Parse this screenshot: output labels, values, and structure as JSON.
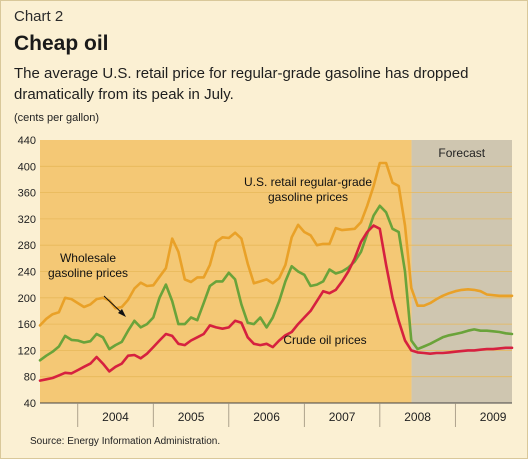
{
  "header": {
    "chart_number": "Chart 2",
    "title": "Cheap oil",
    "subtitle": "The average U.S. retail price for regular-grade gasoline has dropped dramatically from its peak in July."
  },
  "unit_label": "(cents per gallon)",
  "source": "Source: Energy Information Administration.",
  "colors": {
    "plot_actual": "#f4c875",
    "plot_forecast": "#cfc6b0",
    "retail": "#e9a128",
    "wholesale": "#6aa33a",
    "crude": "#d6213f",
    "grid": "#e7b85a"
  },
  "chart_data": {
    "type": "line",
    "ylim": [
      40,
      440
    ],
    "yticks": [
      40,
      80,
      120,
      160,
      200,
      240,
      280,
      320,
      360,
      400,
      440
    ],
    "xlim": [
      2003.5,
      2009.75
    ],
    "year_labels": [
      "2004",
      "2005",
      "2006",
      "2007",
      "2008",
      "2009"
    ],
    "forecast_start": 2008.42,
    "forecast_label": "Forecast",
    "series": [
      {
        "key": "retail",
        "name": "U.S. retail regular-grade gasoline prices",
        "name_lines": [
          "U.S. retail regular-grade",
          "gasoline prices"
        ],
        "x": [
          2003.5,
          2003.583,
          2003.667,
          2003.75,
          2003.833,
          2003.917,
          2004.0,
          2004.083,
          2004.167,
          2004.25,
          2004.333,
          2004.417,
          2004.5,
          2004.583,
          2004.667,
          2004.75,
          2004.833,
          2004.917,
          2005.0,
          2005.083,
          2005.167,
          2005.25,
          2005.333,
          2005.417,
          2005.5,
          2005.583,
          2005.667,
          2005.75,
          2005.833,
          2005.917,
          2006.0,
          2006.083,
          2006.167,
          2006.25,
          2006.333,
          2006.417,
          2006.5,
          2006.583,
          2006.667,
          2006.75,
          2006.833,
          2006.917,
          2007.0,
          2007.083,
          2007.167,
          2007.25,
          2007.333,
          2007.417,
          2007.5,
          2007.583,
          2007.667,
          2007.75,
          2007.833,
          2007.917,
          2008.0,
          2008.083,
          2008.167,
          2008.25,
          2008.333,
          2008.417,
          2008.5,
          2008.583,
          2008.667,
          2008.75,
          2008.833,
          2008.917,
          2009.0,
          2009.083,
          2009.167,
          2009.25,
          2009.333,
          2009.417,
          2009.5,
          2009.583,
          2009.667,
          2009.75
        ],
        "values": [
          158,
          168,
          175,
          178,
          200,
          198,
          192,
          186,
          190,
          198,
          200,
          196,
          184,
          186,
          197,
          214,
          223,
          218,
          219,
          232,
          245,
          290,
          270,
          228,
          224,
          231,
          231,
          250,
          285,
          292,
          291,
          299,
          290,
          252,
          222,
          225,
          228,
          222,
          230,
          250,
          292,
          311,
          300,
          295,
          280,
          282,
          282,
          306,
          303,
          304,
          305,
          315,
          340,
          370,
          405,
          405,
          375,
          370,
          310,
          215,
          188,
          188,
          192,
          198,
          203,
          207,
          210,
          212,
          213,
          212,
          210,
          205,
          204,
          203,
          203,
          203
        ]
      },
      {
        "key": "wholesale",
        "name": "Wholesale gasoline prices",
        "name_lines": [
          "Wholesale",
          "gasoline prices"
        ],
        "x": [
          2003.5,
          2003.583,
          2003.667,
          2003.75,
          2003.833,
          2003.917,
          2004.0,
          2004.083,
          2004.167,
          2004.25,
          2004.333,
          2004.417,
          2004.5,
          2004.583,
          2004.667,
          2004.75,
          2004.833,
          2004.917,
          2005.0,
          2005.083,
          2005.167,
          2005.25,
          2005.333,
          2005.417,
          2005.5,
          2005.583,
          2005.667,
          2005.75,
          2005.833,
          2005.917,
          2006.0,
          2006.083,
          2006.167,
          2006.25,
          2006.333,
          2006.417,
          2006.5,
          2006.583,
          2006.667,
          2006.75,
          2006.833,
          2006.917,
          2007.0,
          2007.083,
          2007.167,
          2007.25,
          2007.333,
          2007.417,
          2007.5,
          2007.583,
          2007.667,
          2007.75,
          2007.833,
          2007.917,
          2008.0,
          2008.083,
          2008.167,
          2008.25,
          2008.333,
          2008.417,
          2008.5,
          2008.583,
          2008.667,
          2008.75,
          2008.833,
          2008.917,
          2009.0,
          2009.083,
          2009.167,
          2009.25,
          2009.333,
          2009.417,
          2009.5,
          2009.583,
          2009.667,
          2009.75
        ],
        "values": [
          105,
          112,
          118,
          126,
          142,
          136,
          135,
          132,
          134,
          145,
          140,
          122,
          128,
          133,
          150,
          165,
          155,
          160,
          170,
          200,
          220,
          195,
          160,
          160,
          170,
          166,
          192,
          218,
          225,
          225,
          238,
          228,
          190,
          162,
          160,
          170,
          155,
          170,
          195,
          225,
          248,
          240,
          235,
          218,
          220,
          225,
          243,
          237,
          240,
          246,
          255,
          270,
          297,
          325,
          340,
          330,
          305,
          300,
          240,
          135,
          122,
          126,
          130,
          135,
          140,
          143,
          145,
          147,
          150,
          152,
          150,
          150,
          149,
          148,
          146,
          145
        ]
      },
      {
        "key": "crude",
        "name": "Crude oil prices",
        "name_lines": [
          "Crude oil prices"
        ],
        "x": [
          2003.5,
          2003.583,
          2003.667,
          2003.75,
          2003.833,
          2003.917,
          2004.0,
          2004.083,
          2004.167,
          2004.25,
          2004.333,
          2004.417,
          2004.5,
          2004.583,
          2004.667,
          2004.75,
          2004.833,
          2004.917,
          2005.0,
          2005.083,
          2005.167,
          2005.25,
          2005.333,
          2005.417,
          2005.5,
          2005.583,
          2005.667,
          2005.75,
          2005.833,
          2005.917,
          2006.0,
          2006.083,
          2006.167,
          2006.25,
          2006.333,
          2006.417,
          2006.5,
          2006.583,
          2006.667,
          2006.75,
          2006.833,
          2006.917,
          2007.0,
          2007.083,
          2007.167,
          2007.25,
          2007.333,
          2007.417,
          2007.5,
          2007.583,
          2007.667,
          2007.75,
          2007.833,
          2007.917,
          2008.0,
          2008.083,
          2008.167,
          2008.25,
          2008.333,
          2008.417,
          2008.5,
          2008.583,
          2008.667,
          2008.75,
          2008.833,
          2008.917,
          2009.0,
          2009.083,
          2009.167,
          2009.25,
          2009.333,
          2009.417,
          2009.5,
          2009.583,
          2009.667,
          2009.75
        ],
        "values": [
          74,
          76,
          78,
          82,
          86,
          85,
          90,
          95,
          100,
          110,
          100,
          88,
          95,
          100,
          112,
          113,
          108,
          115,
          125,
          135,
          145,
          142,
          130,
          128,
          135,
          140,
          145,
          158,
          155,
          153,
          155,
          165,
          162,
          140,
          130,
          128,
          130,
          125,
          135,
          143,
          148,
          160,
          170,
          180,
          195,
          210,
          207,
          212,
          225,
          240,
          260,
          285,
          300,
          310,
          305,
          250,
          200,
          165,
          135,
          120,
          117,
          116,
          115,
          116,
          116,
          117,
          118,
          119,
          120,
          120,
          121,
          122,
          122,
          123,
          124,
          124
        ]
      }
    ]
  }
}
